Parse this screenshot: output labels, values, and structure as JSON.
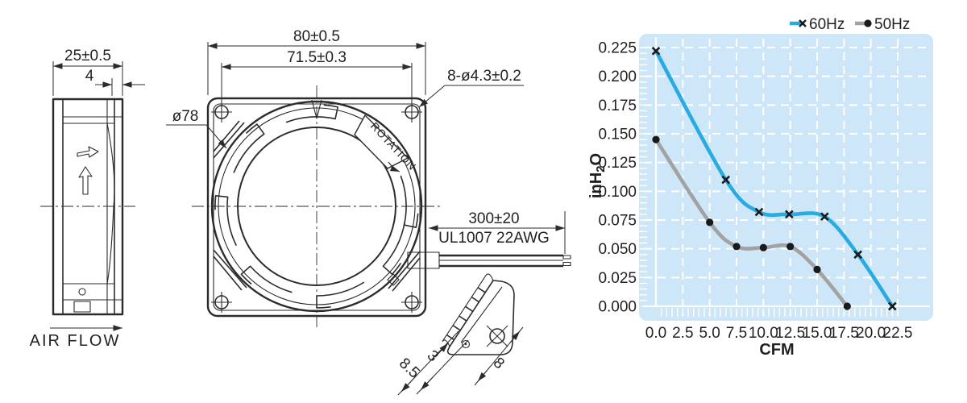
{
  "drawing": {
    "side_view": {
      "dim_width": "25±0.5",
      "dim_flange_depth": "4",
      "airflow_label": "AIR FLOW"
    },
    "front_view": {
      "dim_frame_size": "80±0.5",
      "dim_hole_pitch": "71.5±0.3",
      "mounting_holes_callout": "8-ø4.3±0.2",
      "venturi_diameter": "ø78",
      "rotation_label": "ROTATION",
      "lead_wire_length": "300±20",
      "lead_wire_spec": "UL1007 22AWG"
    },
    "corner_detail": {
      "dim_corner_depth": "8.5",
      "dim_flange_thickness": "3",
      "dim_hole_offset": "8"
    },
    "line_color": "#2d2a2b"
  },
  "chart_data": {
    "type": "line",
    "title": "",
    "xlabel": "CFM",
    "ylabel": "inH₂O",
    "ylabel_parts": {
      "pre": "inH",
      "sub": "2",
      "post": "O"
    },
    "xlim": [
      0,
      22.5
    ],
    "ylim": [
      0,
      0.225
    ],
    "xticks": [
      "0.0",
      "2.5",
      "5.0",
      "7.5",
      "10.0",
      "12.5",
      "15.0",
      "17.5",
      "20.0",
      "22.5"
    ],
    "yticks": [
      "0.225",
      "0.200",
      "0.175",
      "0.150",
      "0.125",
      "0.100",
      "0.075",
      "0.050",
      "0.025",
      "0.000"
    ],
    "x_minor_step": 0.5,
    "y_minor_step": 0.005,
    "grid": {
      "major": "dashed-white",
      "background": "#cde7f8"
    },
    "legend_position": "top-right",
    "marker_color": "#1a1a1a",
    "series": [
      {
        "name": "60Hz",
        "color": "#29abe2",
        "marker": "x",
        "points": [
          [
            0,
            0.222
          ],
          [
            6.5,
            0.11
          ],
          [
            9.6,
            0.082
          ],
          [
            12.4,
            0.08
          ],
          [
            15.7,
            0.078
          ],
          [
            18.8,
            0.045
          ],
          [
            22.0,
            0.0
          ]
        ]
      },
      {
        "name": "50Hz",
        "color": "#a2a2a2",
        "marker": "dot",
        "points": [
          [
            0,
            0.145
          ],
          [
            5.0,
            0.073
          ],
          [
            7.5,
            0.052
          ],
          [
            10.0,
            0.051
          ],
          [
            12.5,
            0.052
          ],
          [
            15.0,
            0.032
          ],
          [
            17.8,
            0.0
          ]
        ]
      }
    ]
  }
}
